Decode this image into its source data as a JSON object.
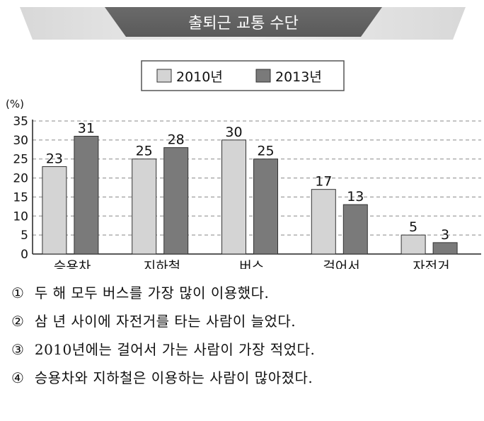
{
  "chart_data": {
    "type": "bar",
    "title": "출퇴근 교통 수단",
    "ylabel": "(%)",
    "categories": [
      "승용차",
      "지하철",
      "버스",
      "걸어서",
      "자전거"
    ],
    "series": [
      {
        "name": "2010년",
        "values": [
          23,
          25,
          30,
          17,
          5
        ],
        "color": "#d4d4d4"
      },
      {
        "name": "2013년",
        "values": [
          31,
          28,
          25,
          13,
          3
        ],
        "color": "#7a7a7a"
      }
    ],
    "ylim": [
      0,
      35
    ],
    "yticks": [
      0,
      5,
      10,
      15,
      20,
      25,
      30,
      35
    ],
    "grid": true,
    "legend_position": "top-center",
    "colors": {
      "banner": "#5a5a5a",
      "banner_text": "#ffffff",
      "gridline": "#888888"
    }
  },
  "options": [
    {
      "num": "①",
      "text": "두 해 모두 버스를 가장 많이 이용했다."
    },
    {
      "num": "②",
      "text": "삼 년 사이에 자전거를 타는 사람이 늘었다."
    },
    {
      "num": "③",
      "text": "2010년에는 걸어서 가는 사람이 가장 적었다."
    },
    {
      "num": "④",
      "text": "승용차와 지하철은 이용하는 사람이 많아졌다."
    }
  ]
}
